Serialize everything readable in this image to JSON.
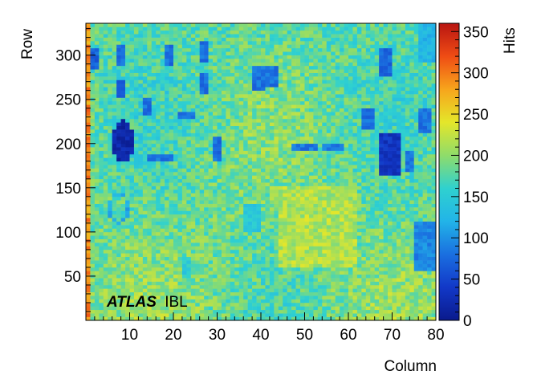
{
  "chart_data": {
    "type": "heatmap",
    "title": "",
    "xlabel": "Column",
    "ylabel": "Row",
    "zlabel": "Hits",
    "xlim": [
      0,
      80
    ],
    "ylim": [
      0,
      336
    ],
    "zlim": [
      0,
      360
    ],
    "x_ticks": [
      10,
      20,
      30,
      40,
      50,
      60,
      70,
      80
    ],
    "y_ticks": [
      50,
      100,
      150,
      200,
      250,
      300
    ],
    "z_ticks": [
      0,
      50,
      100,
      150,
      200,
      250,
      300,
      350
    ],
    "colormap": [
      "#0a1a8c",
      "#1238c8",
      "#1a6fe0",
      "#22b4e8",
      "#2fd1cf",
      "#8fdc6a",
      "#e4e62a",
      "#f7a51c",
      "#ef4c14",
      "#b81512"
    ],
    "background_hits": 190,
    "low_hit_regions": [
      {
        "col_range": [
          6,
          11
        ],
        "row_range": [
          178,
          225
        ],
        "hits": 20,
        "shape": "ellipse"
      },
      {
        "col_range": [
          5,
          10
        ],
        "row_range": [
          108,
          142
        ],
        "hits": 115,
        "shape": "ring"
      },
      {
        "col_range": [
          1,
          3
        ],
        "row_range": [
          284,
          306
        ],
        "hits": 70
      },
      {
        "col_range": [
          7,
          9
        ],
        "row_range": [
          285,
          312
        ],
        "hits": 75
      },
      {
        "col_range": [
          7,
          9
        ],
        "row_range": [
          250,
          270
        ],
        "hits": 75
      },
      {
        "col_range": [
          13,
          15
        ],
        "row_range": [
          230,
          250
        ],
        "hits": 80
      },
      {
        "col_range": [
          14,
          20
        ],
        "row_range": [
          178,
          185
        ],
        "hits": 85
      },
      {
        "col_range": [
          18,
          20
        ],
        "row_range": [
          288,
          312
        ],
        "hits": 80
      },
      {
        "col_range": [
          21,
          25
        ],
        "row_range": [
          225,
          234
        ],
        "hits": 85
      },
      {
        "col_range": [
          26,
          28
        ],
        "row_range": [
          290,
          314
        ],
        "hits": 80
      },
      {
        "col_range": [
          26,
          28
        ],
        "row_range": [
          255,
          278
        ],
        "hits": 80
      },
      {
        "col_range": [
          29,
          31
        ],
        "row_range": [
          178,
          205
        ],
        "hits": 80
      },
      {
        "col_range": [
          38,
          41
        ],
        "row_range": [
          260,
          285
        ],
        "hits": 80
      },
      {
        "col_range": [
          41,
          44
        ],
        "row_range": [
          262,
          285
        ],
        "hits": 80
      },
      {
        "col_range": [
          47,
          53
        ],
        "row_range": [
          190,
          200
        ],
        "hits": 85
      },
      {
        "col_range": [
          54,
          59
        ],
        "row_range": [
          190,
          200
        ],
        "hits": 85
      },
      {
        "col_range": [
          63,
          66
        ],
        "row_range": [
          215,
          240
        ],
        "hits": 80
      },
      {
        "col_range": [
          67,
          70
        ],
        "row_range": [
          275,
          306
        ],
        "hits": 75
      },
      {
        "col_range": [
          67,
          72
        ],
        "row_range": [
          164,
          210
        ],
        "hits": 35
      },
      {
        "col_range": [
          73,
          75
        ],
        "row_range": [
          165,
          192
        ],
        "hits": 80
      },
      {
        "col_range": [
          76,
          79
        ],
        "row_range": [
          210,
          240
        ],
        "hits": 80
      },
      {
        "col_range": [
          75,
          80
        ],
        "row_range": [
          55,
          110
        ],
        "hits": 95
      },
      {
        "col_range": [
          76,
          80
        ],
        "row_range": [
          290,
          336
        ],
        "hits": 125
      },
      {
        "col_range": [
          22,
          24
        ],
        "row_range": [
          45,
          70
        ],
        "hits": 150
      },
      {
        "col_range": [
          36,
          40
        ],
        "row_range": [
          100,
          130
        ],
        "hits": 145
      }
    ],
    "hot_regions": [
      {
        "col_range": [
          0,
          1
        ],
        "row_range": [
          0,
          336
        ],
        "hits": 290
      },
      {
        "col_range": [
          44,
          62
        ],
        "row_range": [
          60,
          150
        ],
        "hits": 215
      }
    ],
    "annotation": {
      "bold_text": "ATLAS",
      "normal_text": "IBL"
    }
  }
}
